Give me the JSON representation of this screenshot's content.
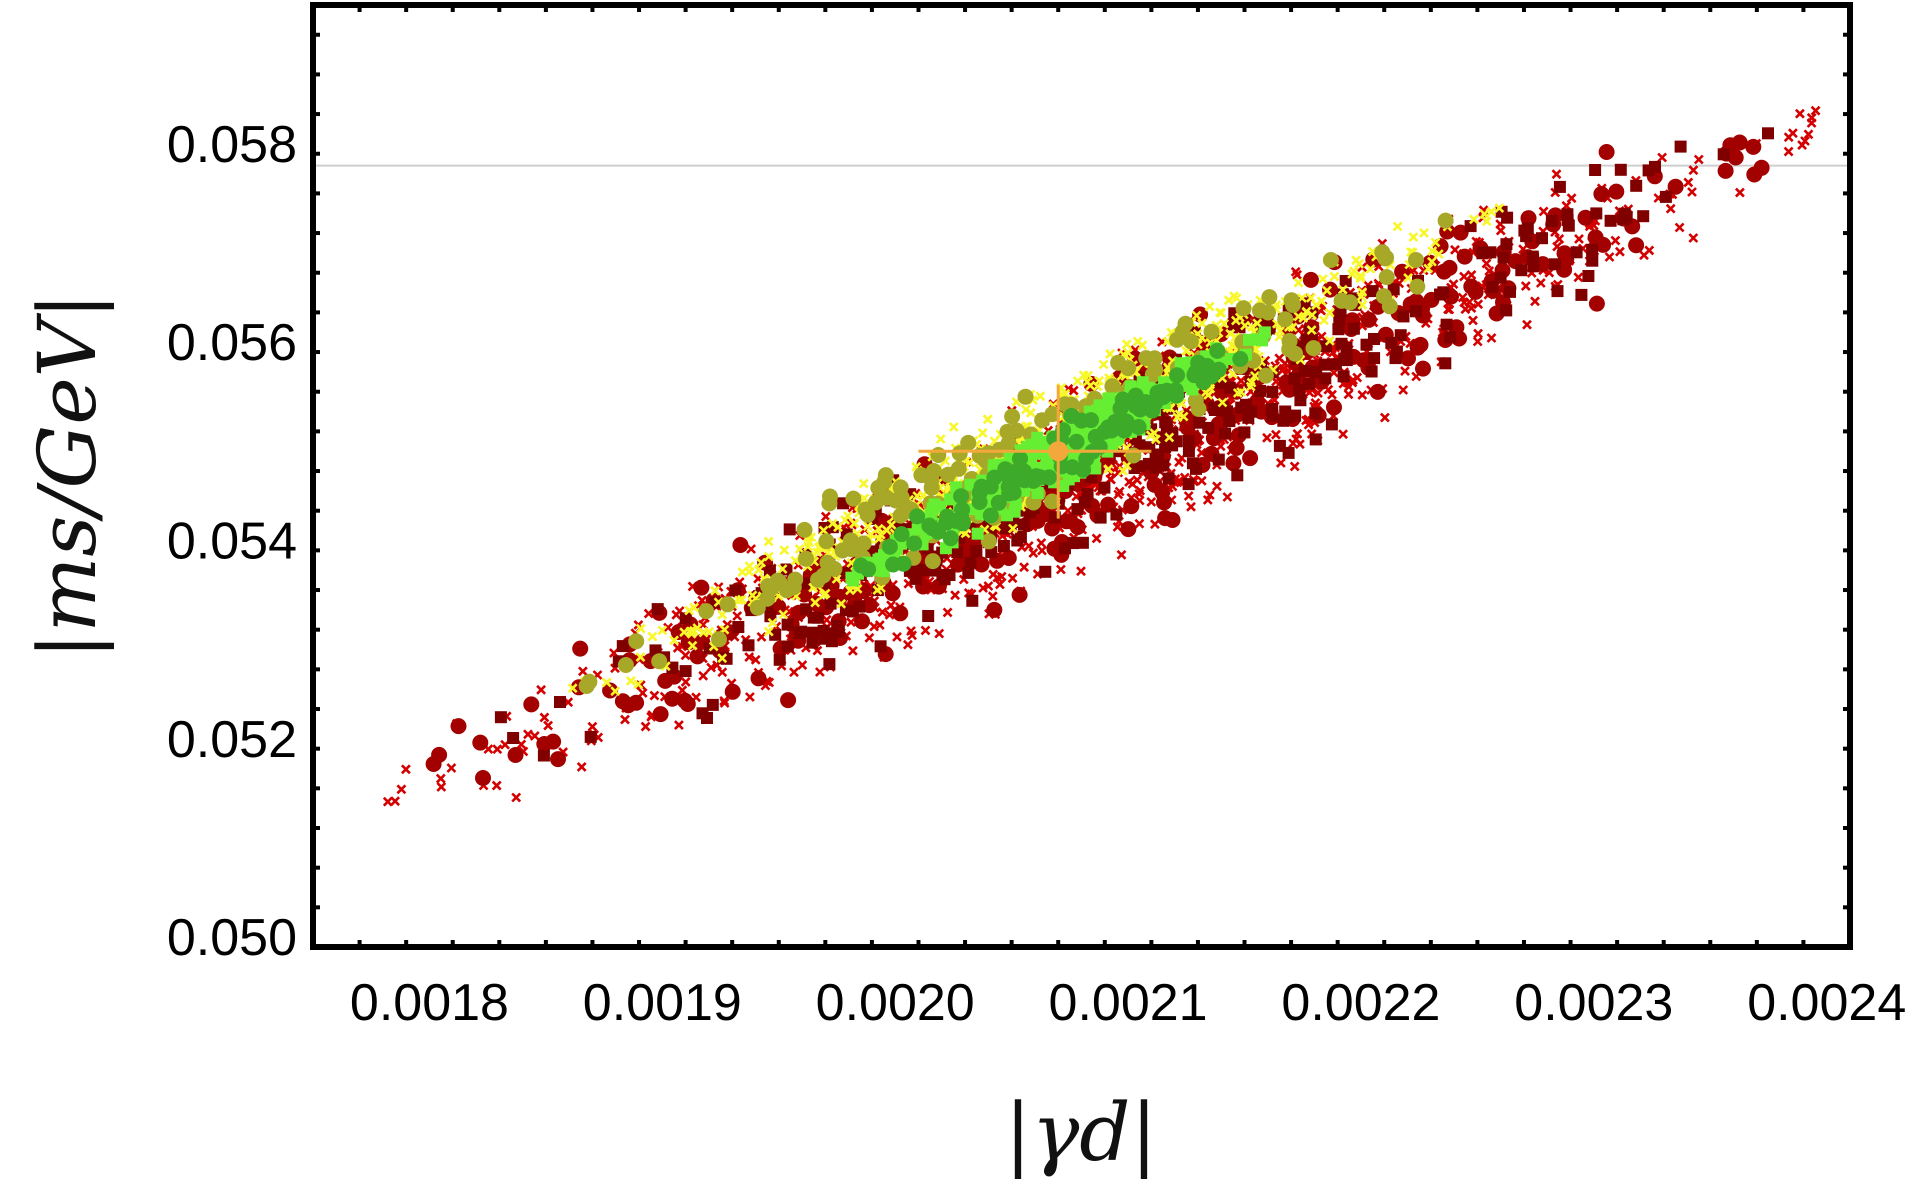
{
  "chart_data": {
    "type": "scatter",
    "title": "",
    "xlabel": "|γd|",
    "ylabel": "|ms/GeV|",
    "xlim": [
      0.00175,
      0.00241
    ],
    "ylim": [
      0.0499,
      0.0594
    ],
    "x_ticks": [
      "0.0018",
      "0.0019",
      "0.0020",
      "0.0021",
      "0.0022",
      "0.0023",
      "0.0024"
    ],
    "y_ticks": [
      "0.050",
      "0.052",
      "0.054",
      "0.056",
      "0.058"
    ],
    "grid": false,
    "reference_line_y": 0.05778,
    "central_point": {
      "x": 0.00207,
      "y": 0.0549,
      "x_err": [
        0.00201,
        0.00211
      ],
      "y_err": [
        0.05422,
        0.05557
      ],
      "color": "#f3a83b"
    },
    "series": [
      {
        "color": "#d40000",
        "marker": "cross",
        "region": {
          "center": [
            0.00209,
            0.0548
          ],
          "axis_start": [
            0.00178,
            0.0516
          ],
          "axis_end": [
            0.0024,
            0.0586
          ],
          "half_width": 0.00125
        }
      },
      {
        "color": "#a30000",
        "marker": "circle",
        "region": {
          "center": [
            0.00209,
            0.0548
          ],
          "axis_start": [
            0.00178,
            0.0516
          ],
          "axis_end": [
            0.0024,
            0.0586
          ],
          "half_width": 0.00125
        }
      },
      {
        "color": "#800000",
        "marker": "square",
        "region": {
          "center": [
            0.00209,
            0.0548
          ],
          "axis_start": [
            0.0018,
            0.0517
          ],
          "axis_end": [
            0.00238,
            0.0584
          ],
          "half_width": 0.00115
        }
      },
      {
        "color": "#f7f72a",
        "marker": "cross",
        "region": {
          "center": [
            0.00206,
            0.0549
          ],
          "axis_start": [
            0.00188,
            0.0523
          ],
          "axis_end": [
            0.00228,
            0.0572
          ],
          "half_width": 0.0008
        }
      },
      {
        "color": "#a8a828",
        "marker": "circle",
        "region": {
          "center": [
            0.00206,
            0.0549
          ],
          "axis_start": [
            0.00188,
            0.0523
          ],
          "axis_end": [
            0.00228,
            0.0572
          ],
          "half_width": 0.0008
        }
      },
      {
        "color": "#66ee33",
        "marker": "square",
        "region": {
          "center": [
            0.00207,
            0.05485
          ],
          "axis_start": [
            0.00198,
            0.0535
          ],
          "axis_end": [
            0.00216,
            0.056
          ],
          "half_width": 0.0004
        }
      },
      {
        "color": "#3daa2a",
        "marker": "circle",
        "region": {
          "center": [
            0.00207,
            0.05485
          ],
          "axis_start": [
            0.00198,
            0.0535
          ],
          "axis_end": [
            0.00216,
            0.056
          ],
          "half_width": 0.0004
        }
      }
    ]
  }
}
